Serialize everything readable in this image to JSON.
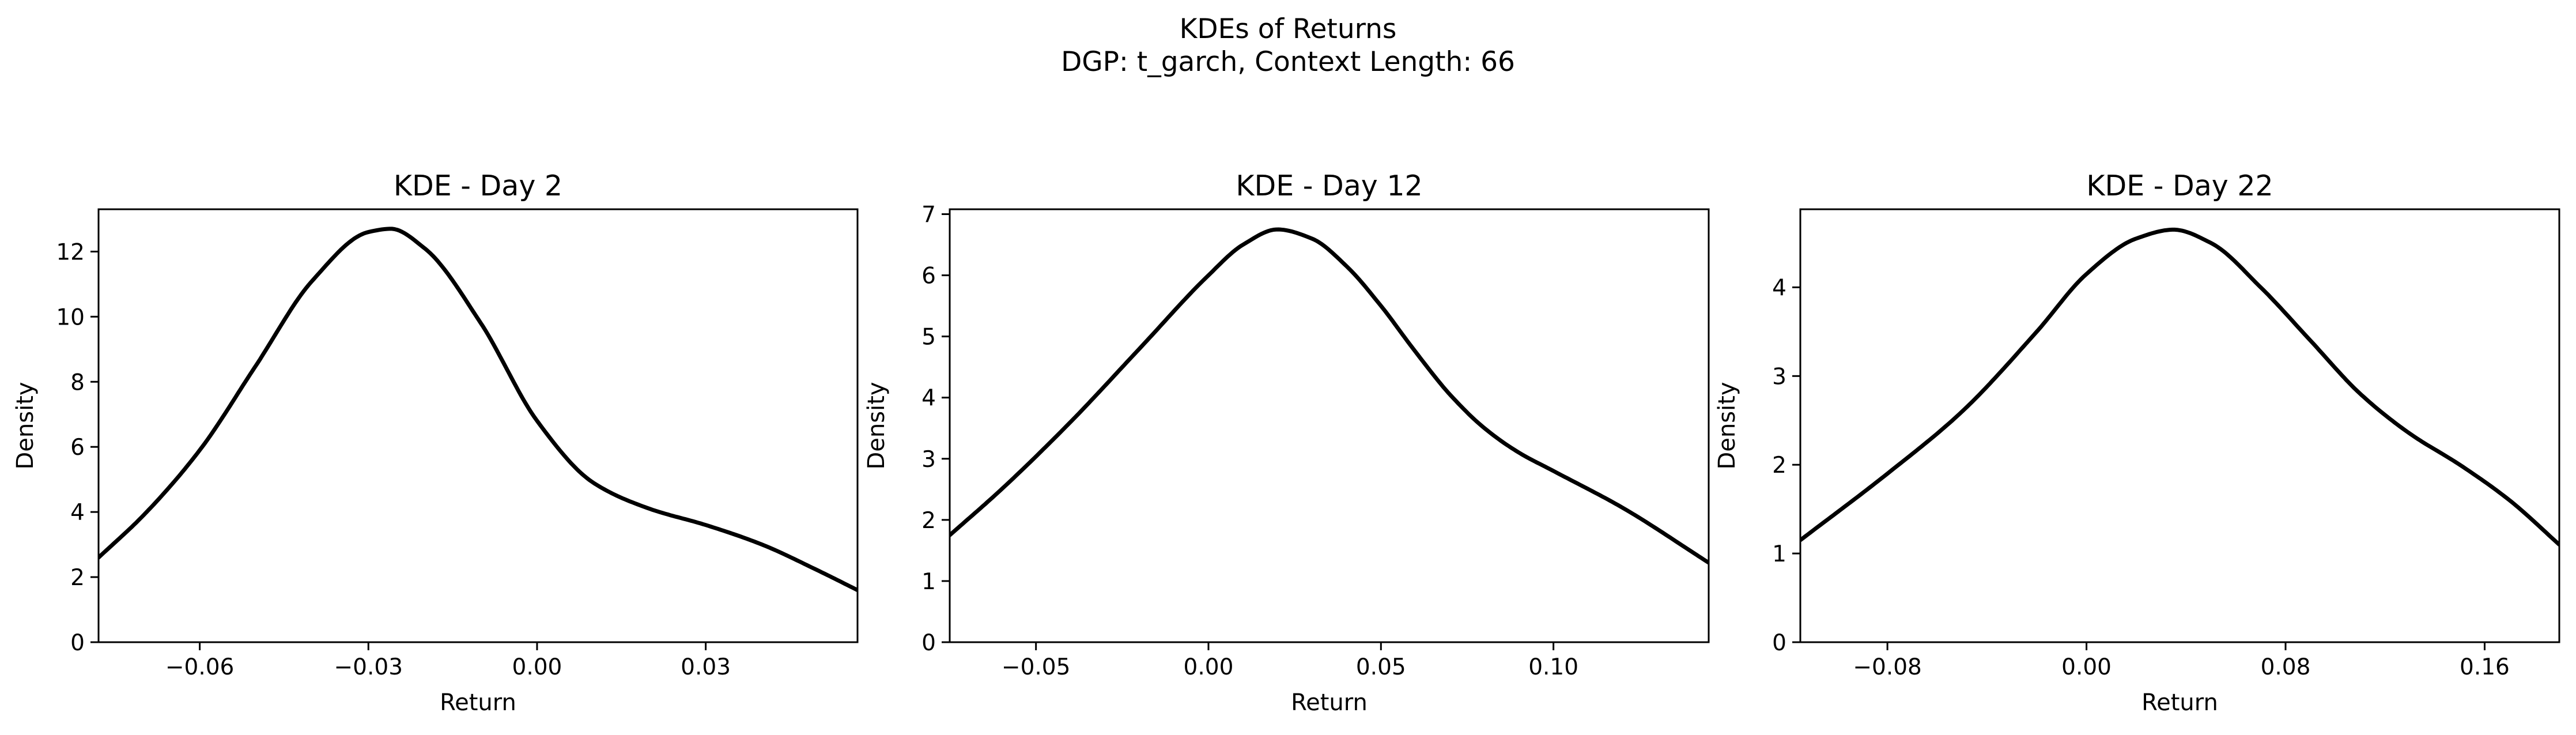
{
  "figure": {
    "suptitle_line1": "KDEs of Returns",
    "suptitle_line2": "DGP: t_garch, Context Length: 66"
  },
  "chart_data": [
    {
      "type": "line",
      "title": "KDE - Day 2",
      "xlabel": "Return",
      "ylabel": "Density",
      "xlim": [
        -0.078,
        0.057
      ],
      "ylim": [
        0,
        13.3
      ],
      "xticks": [
        -0.06,
        -0.03,
        0.0,
        0.03
      ],
      "xtick_labels": [
        "−0.06",
        "−0.03",
        "0.00",
        "0.03"
      ],
      "yticks": [
        0,
        2,
        4,
        6,
        8,
        10,
        12
      ],
      "ytick_labels": [
        "0",
        "2",
        "4",
        "6",
        "8",
        "10",
        "12"
      ],
      "grid": false,
      "series": [
        {
          "color": "#000000",
          "x": [
            -0.078,
            -0.07,
            -0.06,
            -0.05,
            -0.04,
            -0.03,
            -0.026,
            -0.02,
            -0.01,
            0.0,
            0.01,
            0.02,
            0.03,
            0.04,
            0.05,
            0.057
          ],
          "y": [
            2.6,
            3.9,
            5.9,
            8.5,
            11.1,
            12.6,
            12.7,
            12.1,
            9.8,
            6.8,
            4.9,
            4.1,
            3.6,
            3.0,
            2.2,
            1.6
          ]
        }
      ]
    },
    {
      "type": "line",
      "title": "KDE - Day 12",
      "xlabel": "Return",
      "ylabel": "Density",
      "xlim": [
        -0.075,
        0.145
      ],
      "ylim": [
        0,
        7.08
      ],
      "xticks": [
        -0.05,
        0.0,
        0.05,
        0.1
      ],
      "xtick_labels": [
        "−0.05",
        "0.00",
        "0.05",
        "0.10"
      ],
      "yticks": [
        0,
        1,
        2,
        3,
        4,
        5,
        6,
        7
      ],
      "ytick_labels": [
        "0",
        "1",
        "2",
        "3",
        "4",
        "5",
        "6",
        "7"
      ],
      "grid": false,
      "series": [
        {
          "color": "#000000",
          "x": [
            -0.075,
            -0.06,
            -0.04,
            -0.02,
            0.0,
            0.01,
            0.02,
            0.03,
            0.04,
            0.05,
            0.06,
            0.07,
            0.08,
            0.09,
            0.1,
            0.12,
            0.145
          ],
          "y": [
            1.75,
            2.5,
            3.6,
            4.8,
            6.0,
            6.5,
            6.75,
            6.6,
            6.15,
            5.5,
            4.75,
            4.05,
            3.5,
            3.1,
            2.8,
            2.2,
            1.3
          ]
        }
      ]
    },
    {
      "type": "line",
      "title": "KDE - Day 22",
      "xlabel": "Return",
      "ylabel": "Density",
      "xlim": [
        -0.115,
        0.19
      ],
      "ylim": [
        0,
        4.88
      ],
      "xticks": [
        -0.08,
        0.0,
        0.08,
        0.16
      ],
      "xtick_labels": [
        "−0.08",
        "0.00",
        "0.08",
        "0.16"
      ],
      "yticks": [
        0,
        1,
        2,
        3,
        4
      ],
      "ytick_labels": [
        "0",
        "1",
        "2",
        "3",
        "4"
      ],
      "grid": false,
      "series": [
        {
          "color": "#000000",
          "x": [
            -0.115,
            -0.08,
            -0.05,
            -0.02,
            0.0,
            0.02,
            0.035,
            0.05,
            0.07,
            0.09,
            0.11,
            0.13,
            0.15,
            0.17,
            0.19
          ],
          "y": [
            1.15,
            1.9,
            2.6,
            3.5,
            4.15,
            4.55,
            4.65,
            4.5,
            4.0,
            3.4,
            2.8,
            2.35,
            2.0,
            1.6,
            1.1
          ]
        }
      ]
    }
  ]
}
